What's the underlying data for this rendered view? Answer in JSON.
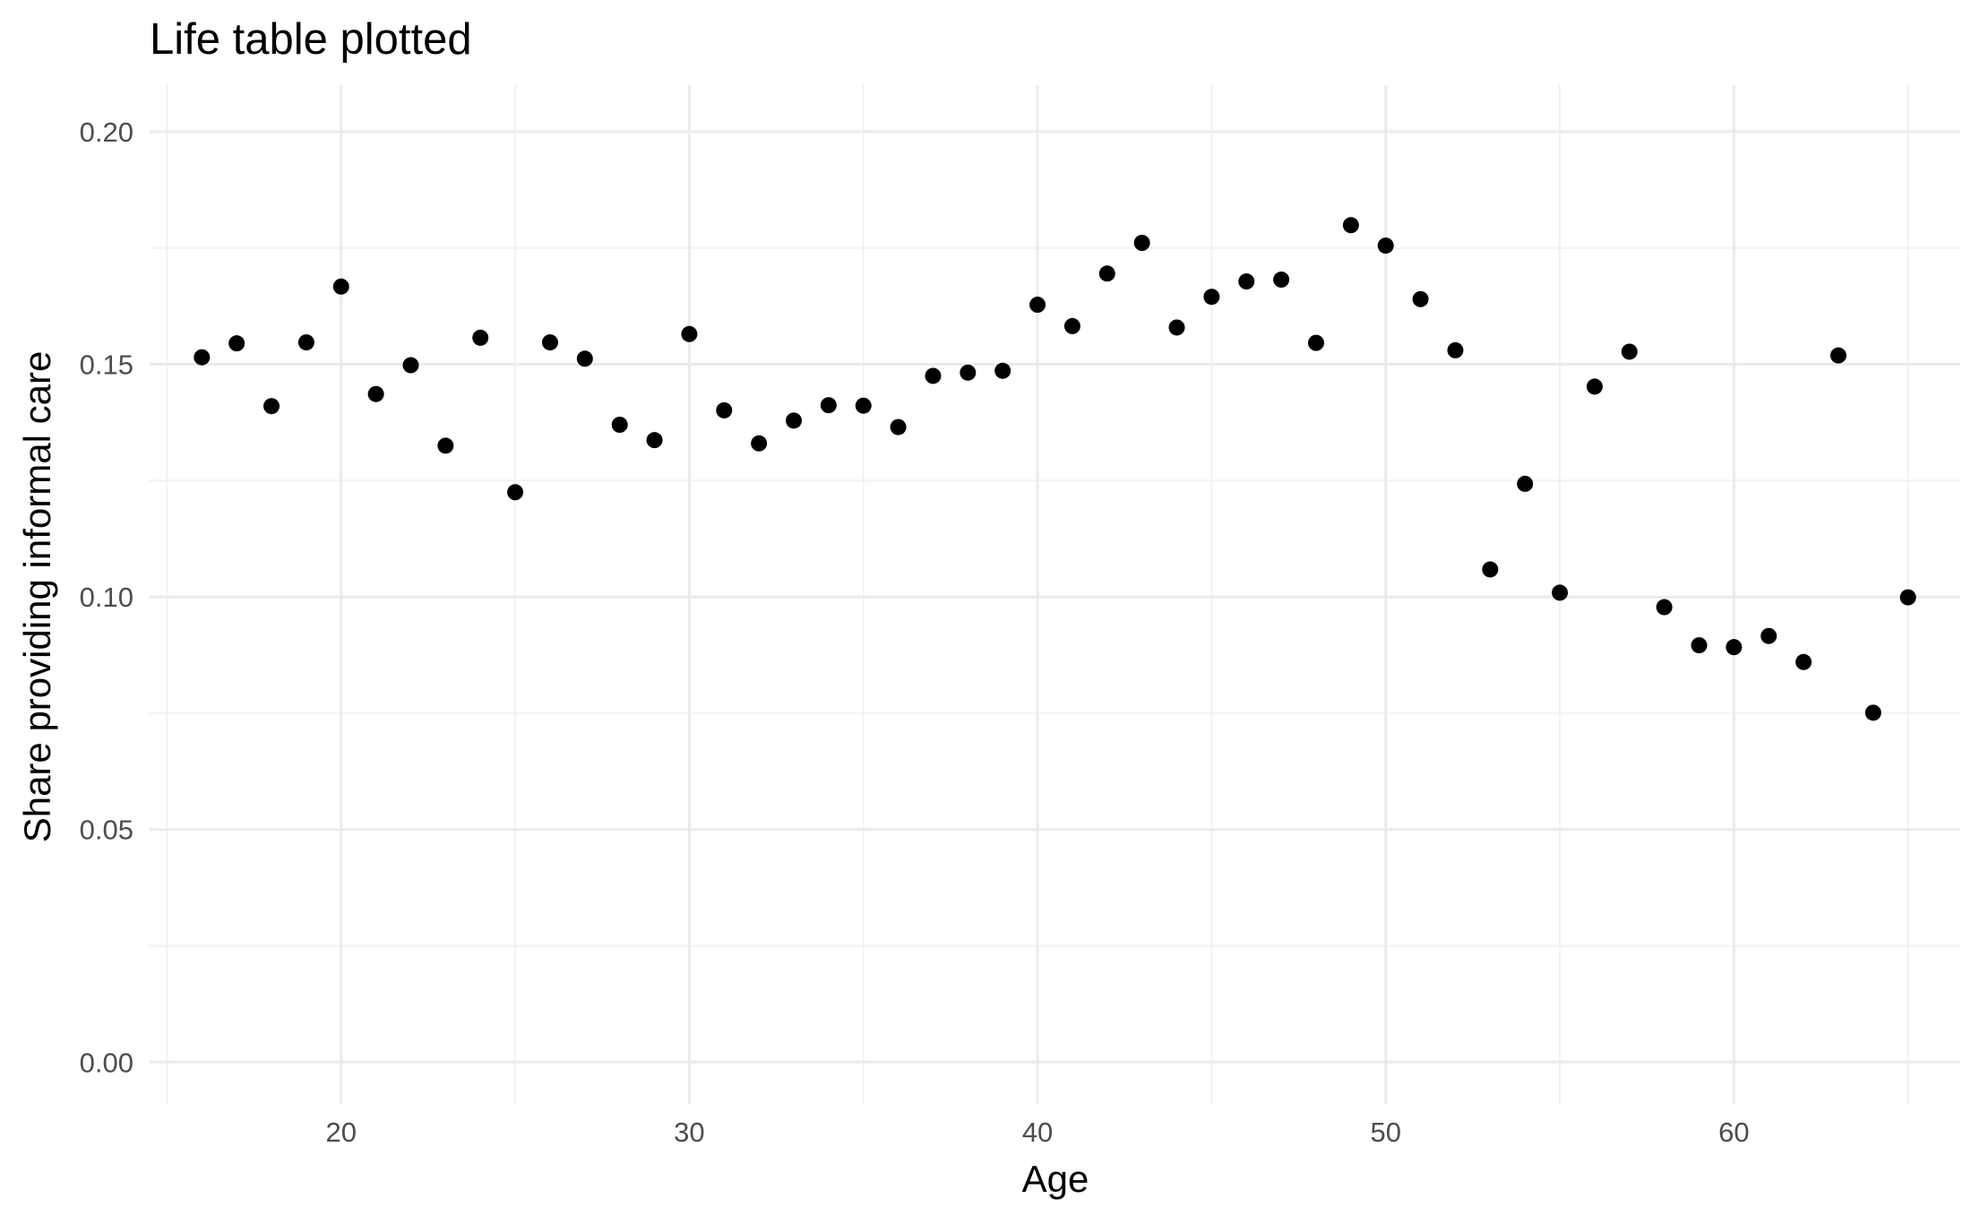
{
  "chart_data": {
    "type": "scatter",
    "title": "Life table plotted",
    "xlabel": "Age",
    "ylabel": "Share providing informal care",
    "xlim": [
      14.5,
      66.5
    ],
    "ylim": [
      -0.009,
      0.21
    ],
    "x_ticks": [
      20,
      30,
      40,
      50,
      60
    ],
    "x_tick_labels": [
      "20",
      "30",
      "40",
      "50",
      "60"
    ],
    "x_minor_ticks": [
      15,
      25,
      35,
      45,
      55,
      65
    ],
    "y_ticks": [
      0.0,
      0.05,
      0.1,
      0.15,
      0.2
    ],
    "y_tick_labels": [
      "0.00",
      "0.05",
      "0.10",
      "0.15",
      "0.20"
    ],
    "y_minor_ticks": [
      0.025,
      0.075,
      0.125,
      0.175
    ],
    "grid": true,
    "point_color": "#000000",
    "series": [
      {
        "x": [
          16,
          17,
          18,
          19,
          20,
          21,
          22,
          23,
          24,
          25,
          26,
          27,
          28,
          29,
          30,
          31,
          32,
          33,
          34,
          35,
          36,
          37,
          38,
          39,
          40,
          41,
          42,
          43,
          44,
          45,
          46,
          47,
          48,
          49,
          50,
          51,
          52,
          53,
          54,
          55,
          56,
          57,
          58,
          59,
          60,
          61,
          62,
          63,
          64,
          65
        ],
        "y": [
          0.1515,
          0.1545,
          0.141,
          0.1547,
          0.1667,
          0.1436,
          0.1498,
          0.1325,
          0.1557,
          0.1225,
          0.1547,
          0.1512,
          0.137,
          0.1337,
          0.1565,
          0.1401,
          0.133,
          0.1379,
          0.1412,
          0.1411,
          0.1365,
          0.1475,
          0.1482,
          0.1486,
          0.1628,
          0.1582,
          0.1695,
          0.1761,
          0.1579,
          0.1645,
          0.1678,
          0.1682,
          0.1546,
          0.1799,
          0.1755,
          0.164,
          0.153,
          0.1059,
          0.1243,
          0.1009,
          0.1452,
          0.1527,
          0.0978,
          0.0896,
          0.0892,
          0.0916,
          0.086,
          0.1519,
          0.0751,
          0.0999
        ]
      }
    ]
  }
}
